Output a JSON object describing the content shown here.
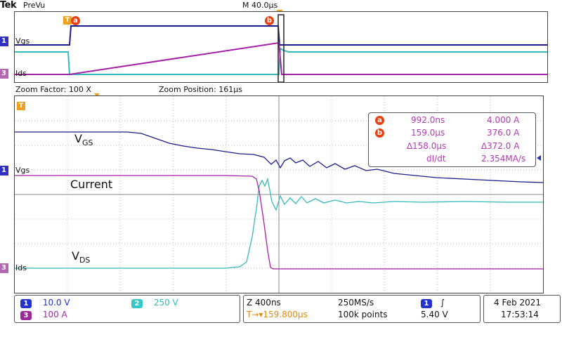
{
  "header": {
    "brand": "Tek",
    "mode": "PreVu",
    "timebase": "M 40.0µs"
  },
  "overview": {
    "ch1_label": "Vgs",
    "ch3_label": "Ids",
    "cursor_a": "a",
    "cursor_b": "b",
    "trigger_marker": "T"
  },
  "zoom": {
    "factor": "Zoom Factor: 100 X",
    "position": "Zoom Position: 161µs"
  },
  "main": {
    "ch1_label": "Vgs",
    "ch3_label": "Ids",
    "annotations": {
      "vgs": {
        "base": "V",
        "sub": "GS"
      },
      "current": "Current",
      "vds": {
        "base": "V",
        "sub": "DS"
      }
    }
  },
  "cursors": {
    "a": {
      "badge": "a",
      "time": "992.0ns",
      "value": "4.000 A"
    },
    "b": {
      "badge": "b",
      "time": "159.0µs",
      "value": "376.0 A"
    },
    "delta_time": "∆158.0µs",
    "delta_value": "∆372.0 A",
    "didt_label": "dI/dt",
    "didt_value": "2.354MA/s"
  },
  "statusbar": {
    "ch1": {
      "num": "1",
      "scale": "10.0 V"
    },
    "ch2": {
      "num": "2",
      "scale": "250 V"
    },
    "ch3": {
      "num": "3",
      "scale": "100 A"
    },
    "zoom_time": "Z 400ns",
    "trigger_pos": "T→▾159.800µs",
    "sample_rate": "250MS/s",
    "record_length": "100k points",
    "trig_source": "1",
    "trig_slope": "∫",
    "trig_level": "5.40 V",
    "date": "4 Feb  2021",
    "time": "17:53:14"
  },
  "colors": {
    "ch1": "#1c1c8c",
    "ch2": "#36b9b9",
    "ch3": "#a620a6",
    "marker": "#ea3f0e",
    "trigger": "#f0a020"
  }
}
